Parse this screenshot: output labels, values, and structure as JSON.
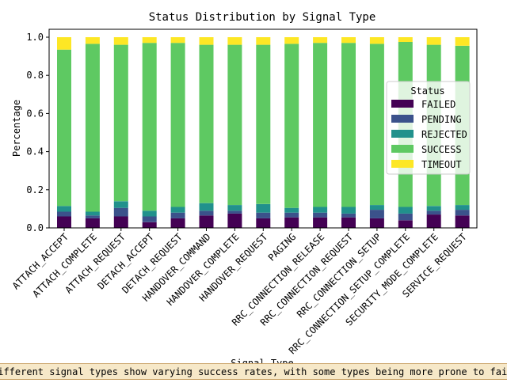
{
  "chart_data": {
    "type": "bar",
    "stacked": true,
    "title": "Status Distribution by Signal Type",
    "xlabel": "Signal Type",
    "ylabel": "Percentage",
    "ylim": [
      0,
      1.0
    ],
    "yticks": [
      "0.0",
      "0.2",
      "0.4",
      "0.6",
      "0.8",
      "1.0"
    ],
    "grid": false,
    "legend": {
      "title": "Status",
      "position": "right"
    },
    "categories": [
      "ATTACH_ACCEPT",
      "ATTACH_COMPLETE",
      "ATTACH_REQUEST",
      "DETACH_ACCEPT",
      "DETACH_REQUEST",
      "HANDOVER_COMMAND",
      "HANDOVER_COMPLETE",
      "HANDOVER_REQUEST",
      "PAGING",
      "RRC_CONNECTION_RELEASE",
      "RRC_CONNECTION_REQUEST",
      "RRC_CONNECTION_SETUP",
      "RRC_CONNECTION_SETUP_COMPLETE",
      "SECURITY_MODE_COMPLETE",
      "SERVICE_REQUEST"
    ],
    "series": [
      {
        "name": "FAILED",
        "color": "#440154",
        "values": [
          0.06,
          0.05,
          0.06,
          0.03,
          0.05,
          0.065,
          0.075,
          0.05,
          0.055,
          0.055,
          0.055,
          0.05,
          0.04,
          0.07,
          0.065
        ]
      },
      {
        "name": "PENDING",
        "color": "#3b528b",
        "values": [
          0.025,
          0.015,
          0.045,
          0.03,
          0.03,
          0.025,
          0.015,
          0.03,
          0.025,
          0.025,
          0.02,
          0.045,
          0.035,
          0.02,
          0.03
        ]
      },
      {
        "name": "REJECTED",
        "color": "#21918c",
        "values": [
          0.03,
          0.02,
          0.035,
          0.03,
          0.03,
          0.04,
          0.03,
          0.045,
          0.025,
          0.03,
          0.035,
          0.025,
          0.035,
          0.025,
          0.025
        ]
      },
      {
        "name": "SUCCESS",
        "color": "#5ec962",
        "values": [
          0.82,
          0.88,
          0.82,
          0.88,
          0.86,
          0.83,
          0.84,
          0.835,
          0.86,
          0.86,
          0.86,
          0.845,
          0.865,
          0.845,
          0.835
        ]
      },
      {
        "name": "TIMEOUT",
        "color": "#fde725",
        "values": [
          0.065,
          0.035,
          0.04,
          0.03,
          0.03,
          0.04,
          0.04,
          0.04,
          0.035,
          0.03,
          0.03,
          0.035,
          0.025,
          0.04,
          0.045
        ]
      }
    ]
  },
  "caption": "Different signal types show varying success rates, with some types being more prone to failures or timeouts."
}
